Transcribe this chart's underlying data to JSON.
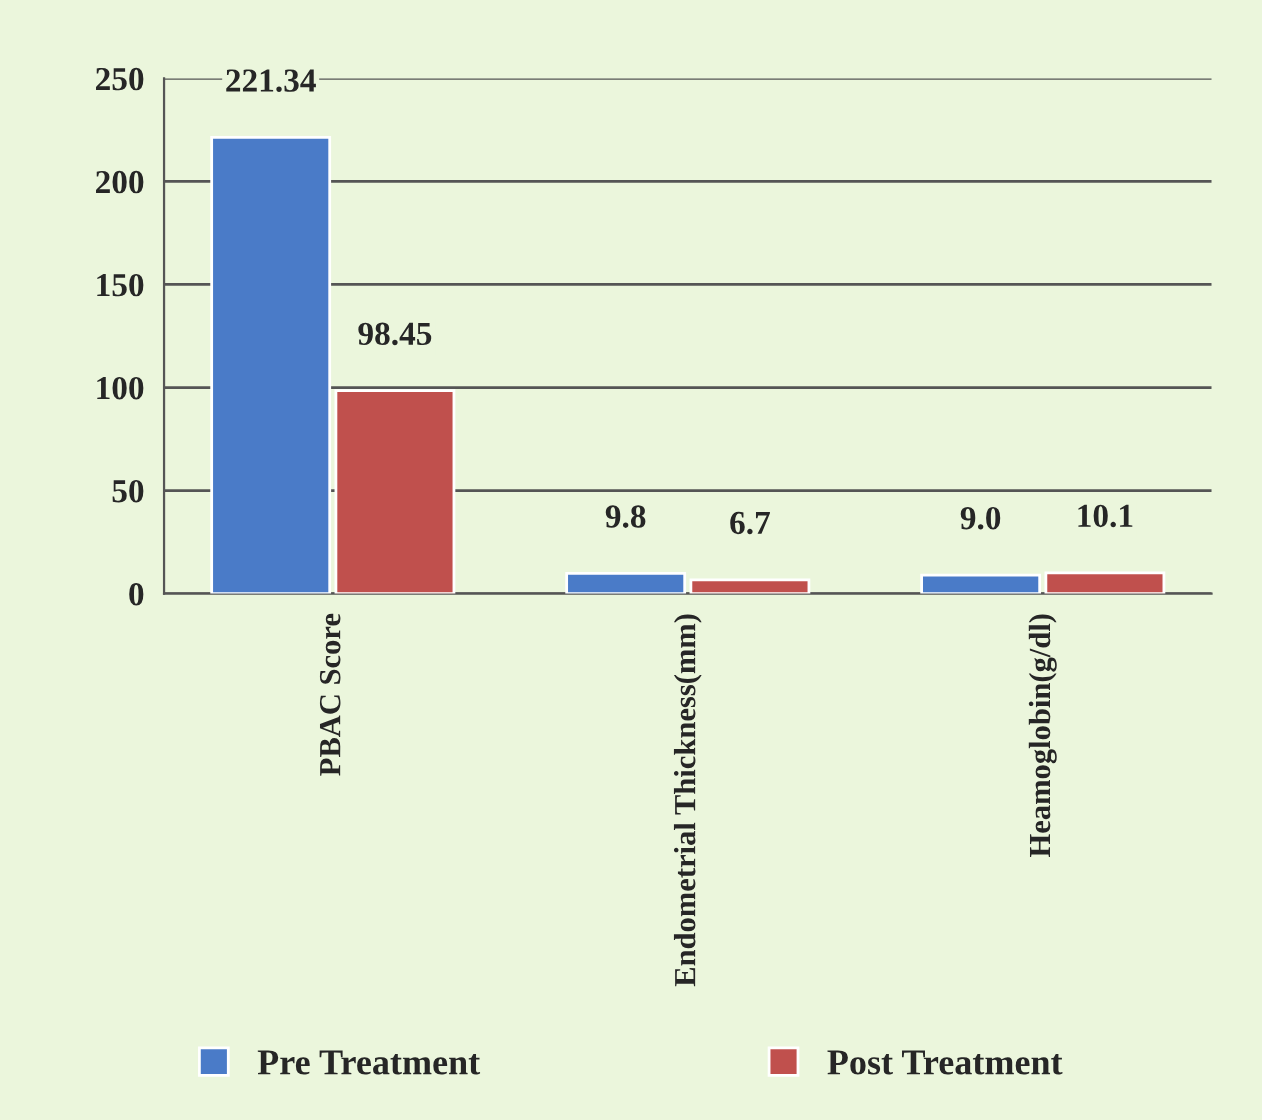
{
  "chart_data": {
    "type": "bar",
    "categories": [
      "PBAC Score",
      "Endometrial Thickness(mm)",
      "Heamoglobin(g/dl)"
    ],
    "series": [
      {
        "name": "Pre Treatment",
        "color": "#4a7bc8",
        "values": [
          221.34,
          9.8,
          9.0
        ],
        "value_labels": [
          "221.34",
          "9.8",
          "9.0"
        ]
      },
      {
        "name": "Post Treatment",
        "color": "#c0504d",
        "values": [
          98.45,
          6.7,
          10.1
        ],
        "value_labels": [
          "98.45",
          "6.7",
          "10.1"
        ]
      }
    ],
    "ylim": [
      0,
      250
    ],
    "yticks": [
      0,
      50,
      100,
      150,
      200,
      250
    ],
    "grid": "y",
    "legend": "bottom"
  }
}
